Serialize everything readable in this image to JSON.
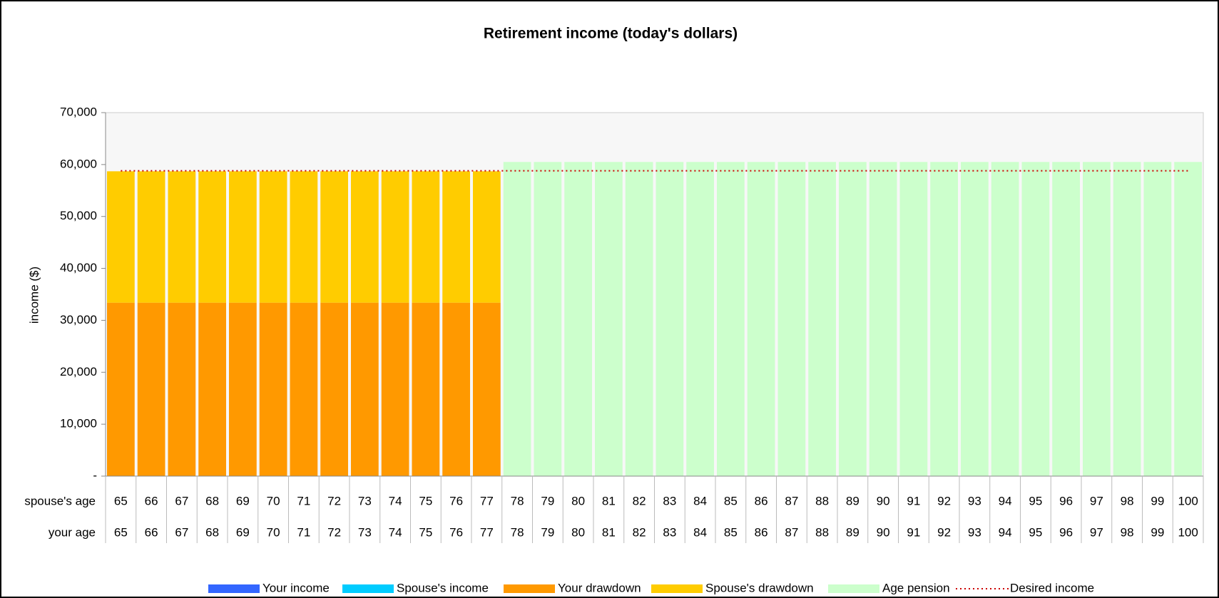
{
  "chart_data": {
    "type": "bar",
    "stacked": true,
    "title": "Retirement income (today's dollars)",
    "y_label": "income ($)",
    "row_labels": [
      "spouse's age",
      "your age"
    ],
    "spouse_ages": [
      65,
      66,
      67,
      68,
      69,
      70,
      71,
      72,
      73,
      74,
      75,
      76,
      77,
      78,
      79,
      80,
      81,
      82,
      83,
      84,
      85,
      86,
      87,
      88,
      89,
      90,
      91,
      92,
      93,
      94,
      95,
      96,
      97,
      98,
      99,
      100
    ],
    "categories": [
      65,
      66,
      67,
      68,
      69,
      70,
      71,
      72,
      73,
      74,
      75,
      76,
      77,
      78,
      79,
      80,
      81,
      82,
      83,
      84,
      85,
      86,
      87,
      88,
      89,
      90,
      91,
      92,
      93,
      94,
      95,
      96,
      97,
      98,
      99,
      100
    ],
    "ylim": [
      0,
      70000
    ],
    "yticks": [
      {
        "value": 0,
        "label": "-"
      },
      {
        "value": 10000,
        "label": "10,000"
      },
      {
        "value": 20000,
        "label": "20,000"
      },
      {
        "value": 30000,
        "label": "30,000"
      },
      {
        "value": 40000,
        "label": "40,000"
      },
      {
        "value": 50000,
        "label": "50,000"
      },
      {
        "value": 60000,
        "label": "60,000"
      },
      {
        "value": 70000,
        "label": "70,000"
      }
    ],
    "grid": false,
    "legend": "bottom",
    "series": [
      {
        "name": "Your income",
        "color": "#3366ff",
        "values": [
          0,
          0,
          0,
          0,
          0,
          0,
          0,
          0,
          0,
          0,
          0,
          0,
          0,
          0,
          0,
          0,
          0,
          0,
          0,
          0,
          0,
          0,
          0,
          0,
          0,
          0,
          0,
          0,
          0,
          0,
          0,
          0,
          0,
          0,
          0,
          0
        ]
      },
      {
        "name": "Spouse's income",
        "color": "#00ccff",
        "values": [
          0,
          0,
          0,
          0,
          0,
          0,
          0,
          0,
          0,
          0,
          0,
          0,
          0,
          0,
          0,
          0,
          0,
          0,
          0,
          0,
          0,
          0,
          0,
          0,
          0,
          0,
          0,
          0,
          0,
          0,
          0,
          0,
          0,
          0,
          0,
          0
        ]
      },
      {
        "name": "Your drawdown",
        "color": "#ff9900",
        "values": [
          33400,
          33400,
          33400,
          33400,
          33400,
          33400,
          33400,
          33400,
          33400,
          33400,
          33400,
          33400,
          33400,
          0,
          0,
          0,
          0,
          0,
          0,
          0,
          0,
          0,
          0,
          0,
          0,
          0,
          0,
          0,
          0,
          0,
          0,
          0,
          0,
          0,
          0,
          0
        ]
      },
      {
        "name": "Spouse's drawdown",
        "color": "#ffcc00",
        "values": [
          25300,
          25300,
          25300,
          25300,
          25300,
          25300,
          25300,
          25300,
          25300,
          25300,
          25300,
          25300,
          25300,
          0,
          0,
          0,
          0,
          0,
          0,
          0,
          0,
          0,
          0,
          0,
          0,
          0,
          0,
          0,
          0,
          0,
          0,
          0,
          0,
          0,
          0,
          0
        ]
      },
      {
        "name": "Age pension",
        "color": "#ccffcc",
        "values": [
          0,
          0,
          0,
          0,
          0,
          0,
          0,
          0,
          0,
          0,
          0,
          0,
          0,
          60500,
          60500,
          60500,
          60500,
          60500,
          60500,
          60500,
          60500,
          60500,
          60500,
          60500,
          60500,
          60500,
          60500,
          60500,
          60500,
          60500,
          60500,
          60500,
          60500,
          60500,
          60500,
          60500
        ]
      },
      {
        "name": "Desired income",
        "color": "#cc0000",
        "type": "line",
        "dashed": true,
        "values": [
          58800,
          58800,
          58800,
          58800,
          58800,
          58800,
          58800,
          58800,
          58800,
          58800,
          58800,
          58800,
          58800,
          58800,
          58800,
          58800,
          58800,
          58800,
          58800,
          58800,
          58800,
          58800,
          58800,
          58800,
          58800,
          58800,
          58800,
          58800,
          58800,
          58800,
          58800,
          58800,
          58800,
          58800,
          58800,
          58800
        ]
      }
    ]
  }
}
